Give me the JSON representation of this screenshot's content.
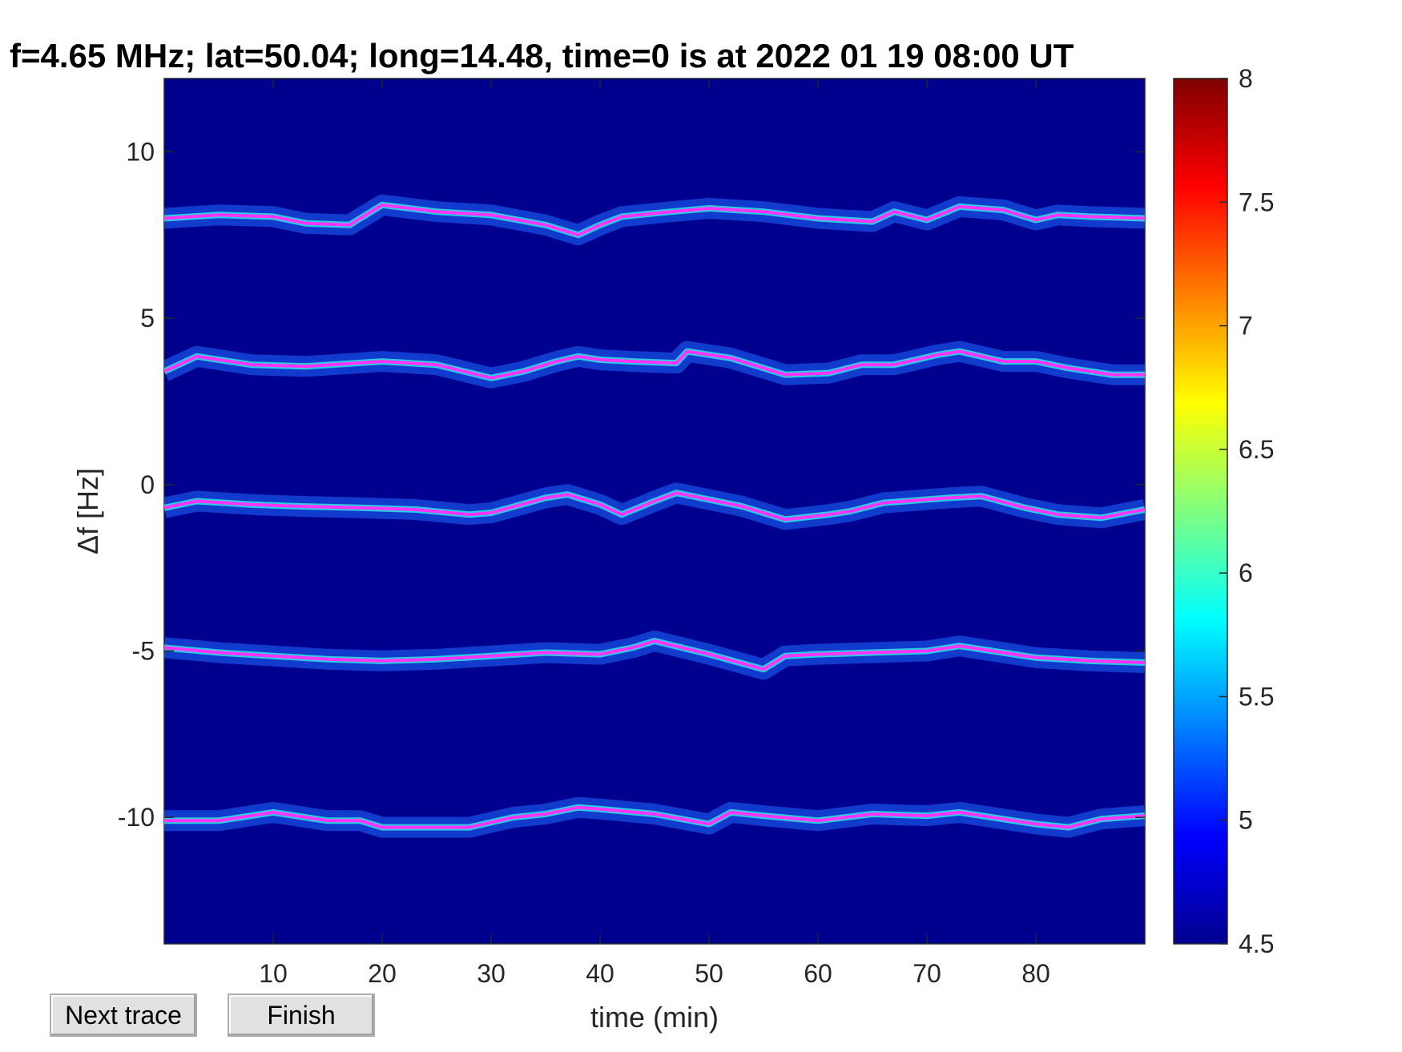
{
  "buttons": {
    "next_trace": "Next trace",
    "finish": "Finish"
  },
  "chart_data": {
    "type": "heatmap",
    "title": "f=4.65 MHz;  lat=50.04; long=14.48, time=0 is at 2022 01 19 08:00 UT",
    "xlabel": "time (min)",
    "ylabel": "Δf [Hz]",
    "xlim": [
      0,
      90
    ],
    "ylim": [
      -13.8,
      12.2
    ],
    "xticks": [
      10,
      20,
      30,
      40,
      50,
      60,
      70,
      80
    ],
    "yticks": [
      10,
      5,
      0,
      -5,
      -10
    ],
    "colormap": "jet",
    "clim": [
      4.5,
      8
    ],
    "colorbar_ticks": [
      8,
      7.5,
      7,
      6.5,
      6,
      5.5,
      5,
      4.5
    ],
    "background_color": "#00008f",
    "trace_color": "#ff33ff",
    "traces": [
      {
        "name": "",
        "x": [
          0,
          5,
          10,
          13,
          17,
          20,
          25,
          30,
          35,
          38,
          40,
          42,
          45,
          50,
          55,
          60,
          65,
          67,
          70,
          73,
          77,
          80,
          82,
          85,
          90
        ],
        "y": [
          8.0,
          8.1,
          8.05,
          7.85,
          7.8,
          8.4,
          8.2,
          8.1,
          7.8,
          7.5,
          7.8,
          8.05,
          8.15,
          8.3,
          8.2,
          8.0,
          7.9,
          8.2,
          7.95,
          8.35,
          8.25,
          7.95,
          8.1,
          8.05,
          8.0
        ]
      },
      {
        "name": "",
        "x": [
          0,
          3,
          8,
          13,
          20,
          25,
          30,
          33,
          36,
          38,
          40,
          43,
          47,
          48,
          52,
          57,
          61,
          64,
          67,
          71,
          73,
          77,
          80,
          83,
          87,
          90
        ],
        "y": [
          3.4,
          3.85,
          3.6,
          3.55,
          3.7,
          3.6,
          3.2,
          3.4,
          3.7,
          3.85,
          3.75,
          3.7,
          3.65,
          4.0,
          3.8,
          3.3,
          3.35,
          3.6,
          3.6,
          3.9,
          4.0,
          3.7,
          3.7,
          3.5,
          3.3,
          3.3
        ]
      },
      {
        "name": "",
        "x": [
          0,
          3,
          8,
          12,
          18,
          23,
          28,
          30,
          35,
          37,
          40,
          42,
          45,
          47,
          50,
          53,
          57,
          61,
          63,
          66,
          72,
          75,
          79,
          82,
          86,
          90
        ],
        "y": [
          -0.7,
          -0.5,
          -0.6,
          -0.65,
          -0.7,
          -0.75,
          -0.9,
          -0.85,
          -0.4,
          -0.3,
          -0.6,
          -0.9,
          -0.5,
          -0.25,
          -0.45,
          -0.65,
          -1.05,
          -0.9,
          -0.8,
          -0.55,
          -0.4,
          -0.35,
          -0.7,
          -0.9,
          -1.0,
          -0.75
        ]
      },
      {
        "name": "",
        "x": [
          0,
          5,
          10,
          15,
          20,
          25,
          30,
          35,
          40,
          43,
          45,
          50,
          55,
          57,
          60,
          65,
          70,
          73,
          76,
          80,
          85,
          90
        ],
        "y": [
          -4.9,
          -5.05,
          -5.15,
          -5.25,
          -5.3,
          -5.25,
          -5.15,
          -5.05,
          -5.1,
          -4.9,
          -4.7,
          -5.1,
          -5.55,
          -5.15,
          -5.1,
          -5.05,
          -5.0,
          -4.85,
          -5.0,
          -5.2,
          -5.3,
          -5.35
        ]
      },
      {
        "name": "",
        "x": [
          0,
          5,
          10,
          15,
          18,
          20,
          25,
          28,
          32,
          35,
          38,
          40,
          45,
          50,
          52,
          55,
          60,
          65,
          70,
          73,
          76,
          80,
          83,
          86,
          90
        ],
        "y": [
          -10.1,
          -10.1,
          -9.85,
          -10.1,
          -10.1,
          -10.3,
          -10.3,
          -10.3,
          -10.0,
          -9.9,
          -9.7,
          -9.75,
          -9.9,
          -10.2,
          -9.85,
          -9.95,
          -10.1,
          -9.9,
          -9.95,
          -9.85,
          -10.0,
          -10.2,
          -10.3,
          -10.05,
          -9.95
        ]
      }
    ],
    "grid": false,
    "legend": "none"
  }
}
